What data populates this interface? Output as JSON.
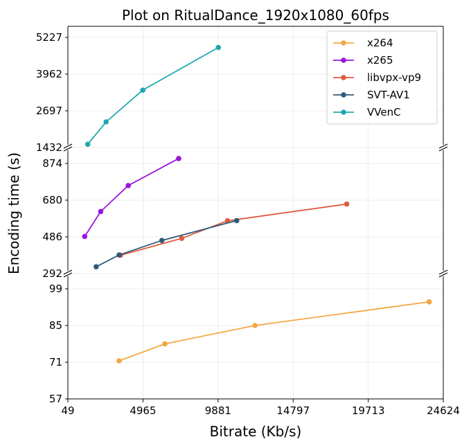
{
  "chart_data": {
    "type": "line",
    "title": "Plot on RitualDance_1920x1080_60fps",
    "xlabel": "Bitrate (Kb/s)",
    "ylabel": "Encoding time (s)",
    "xlim": [
      49,
      24624
    ],
    "x_ticks": [
      "49",
      "4965",
      "9881",
      "14797",
      "19713",
      "24624"
    ],
    "grid": true,
    "legend_position": "top-right",
    "broken_y_axis": true,
    "panels": [
      {
        "ylim": [
          1432,
          5500
        ],
        "y_ticks": [
          "1432",
          "2697",
          "3962",
          "5227"
        ]
      },
      {
        "ylim": [
          292,
          935
        ],
        "y_ticks": [
          "292",
          "486",
          "680",
          "874"
        ]
      },
      {
        "ylim": [
          57,
          104
        ],
        "y_ticks": [
          "57",
          "71",
          "85",
          "99"
        ]
      }
    ],
    "series": [
      {
        "name": "x264",
        "color": "#f4a742",
        "panel": 2,
        "points": [
          [
            3400,
            71.5
          ],
          [
            6400,
            78
          ],
          [
            12300,
            85
          ],
          [
            23700,
            94
          ]
        ]
      },
      {
        "name": "x265",
        "color": "#9a14d9",
        "panel": 1,
        "points": [
          [
            1150,
            488
          ],
          [
            2200,
            620
          ],
          [
            4000,
            757
          ],
          [
            7300,
            900
          ]
        ]
      },
      {
        "name": "libvpx-vp9",
        "color": "#e05a3f",
        "panel": 1,
        "points": [
          [
            3500,
            389
          ],
          [
            7500,
            478
          ],
          [
            10500,
            571
          ],
          [
            18300,
            659
          ]
        ]
      },
      {
        "name": "SVT-AV1",
        "color": "#2e5a7a",
        "panel": 1,
        "points": [
          [
            1900,
            328
          ],
          [
            3400,
            390
          ],
          [
            6200,
            467
          ],
          [
            11100,
            572
          ]
        ]
      },
      {
        "name": "VVenC",
        "color": "#1fa8ad",
        "panel": 0,
        "points": [
          [
            1350,
            1545
          ],
          [
            2550,
            2315
          ],
          [
            4950,
            3410
          ],
          [
            9900,
            4880
          ]
        ]
      }
    ]
  }
}
